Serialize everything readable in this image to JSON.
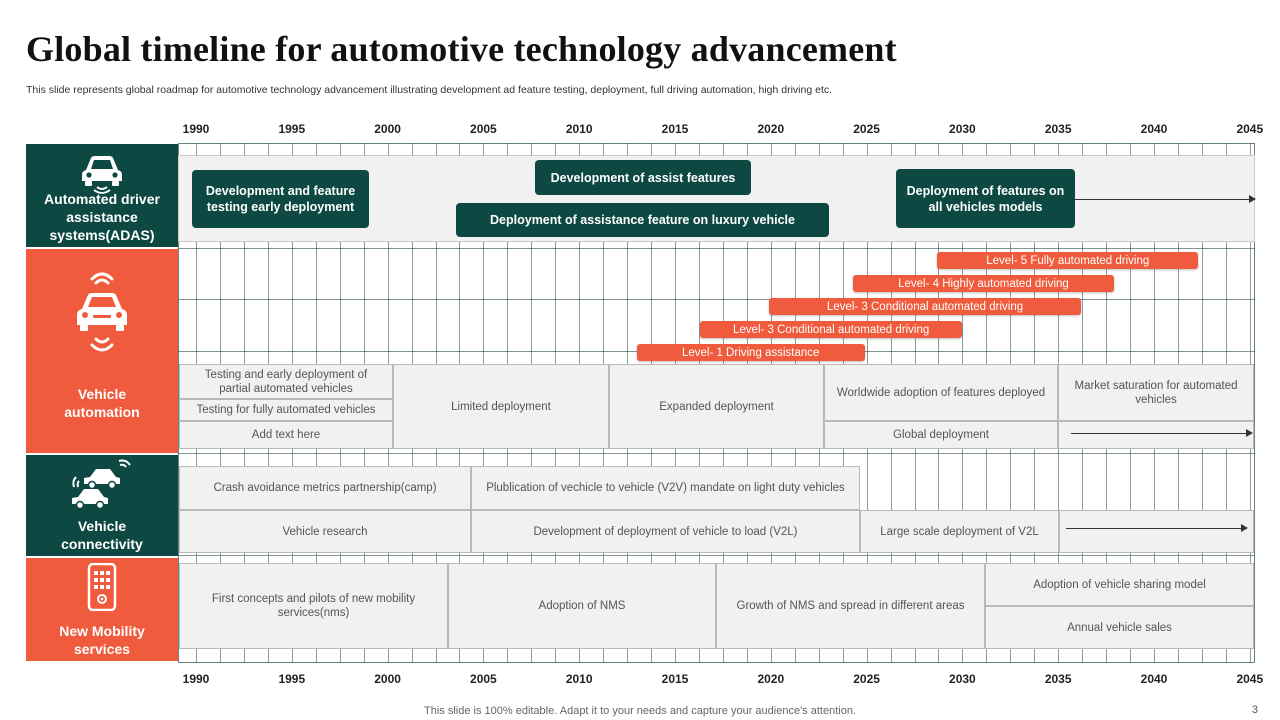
{
  "header": {
    "title": "Global timeline for automotive technology advancement",
    "subtitle": "This slide represents global roadmap for automotive technology advancement illustrating development ad feature testing, deployment, full driving automation, high driving etc."
  },
  "years": [
    "1990",
    "1995",
    "2000",
    "2005",
    "2010",
    "2015",
    "2020",
    "2025",
    "2030",
    "2035",
    "2040",
    "2045"
  ],
  "categories": {
    "adas": {
      "label": "Automated driver assistance systems(ADAS)",
      "icon": "car-front-icon"
    },
    "automation": {
      "label": "Vehicle automation",
      "icon": "autonomous-car-icon"
    },
    "connectivity": {
      "label": "Vehicle connectivity",
      "icon": "connected-cars-icon"
    },
    "mobility": {
      "label": "New Mobility services",
      "icon": "smartphone-icon"
    }
  },
  "adas": {
    "dev_testing": "Development and feature testing early deployment",
    "dev_assist": "Development of assist  features",
    "deploy_luxury": "Deployment of assistance  feature on luxury vehicle",
    "deploy_all": "Deployment of features on all vehicles models"
  },
  "levels": [
    {
      "label": "Level- 1       Driving assistance",
      "start": 2013,
      "end": 2024.9
    },
    {
      "label": "Level- 3       Conditional automated driving",
      "start": 2016.3,
      "end": 2030
    },
    {
      "label": "Level- 3  Conditional automated driving",
      "start": 2019.9,
      "end": 2036.2
    },
    {
      "label": "Level- 4 Highly automated driving",
      "start": 2024.3,
      "end": 2037.9
    },
    {
      "label": "Level- 5  Fully automated driving",
      "start": 2028.7,
      "end": 2042.3
    }
  ],
  "automation": {
    "testing_partial": "Testing and early deployment of partial automated vehicles",
    "testing_full": "Testing for fully automated vehicles",
    "add_text": "Add text here",
    "limited": "Limited deployment",
    "expanded": "Expanded deployment",
    "worldwide": "Worldwide adoption of features deployed",
    "saturation": "Market saturation for automated vehicles",
    "global": "Global deployment"
  },
  "connectivity": {
    "camp": "Crash avoidance metrics partnership(camp)",
    "v2v": "Plublication of vechicle to vehicle (V2V)  mandate on light duty vehicles",
    "research": "Vehicle research",
    "v2l_dev": "Development of deployment of vehicle to load (V2L)",
    "v2l_large": "Large scale deployment of V2L"
  },
  "mobility": {
    "first": "First concepts and pilots of new mobility services(nms)",
    "adoption_nms": "Adoption of NMS",
    "growth": "Growth of NMS and spread in different areas",
    "sharing": "Adoption of vehicle sharing model",
    "annual": "Annual vehicle sales"
  },
  "footer": {
    "note": "This slide is 100% editable. Adapt it to your needs and capture your audience's attention.",
    "page": "3"
  },
  "colors": {
    "teal": "#0d4942",
    "orange": "#ef5b3c",
    "cell": "#f1f1f1"
  }
}
